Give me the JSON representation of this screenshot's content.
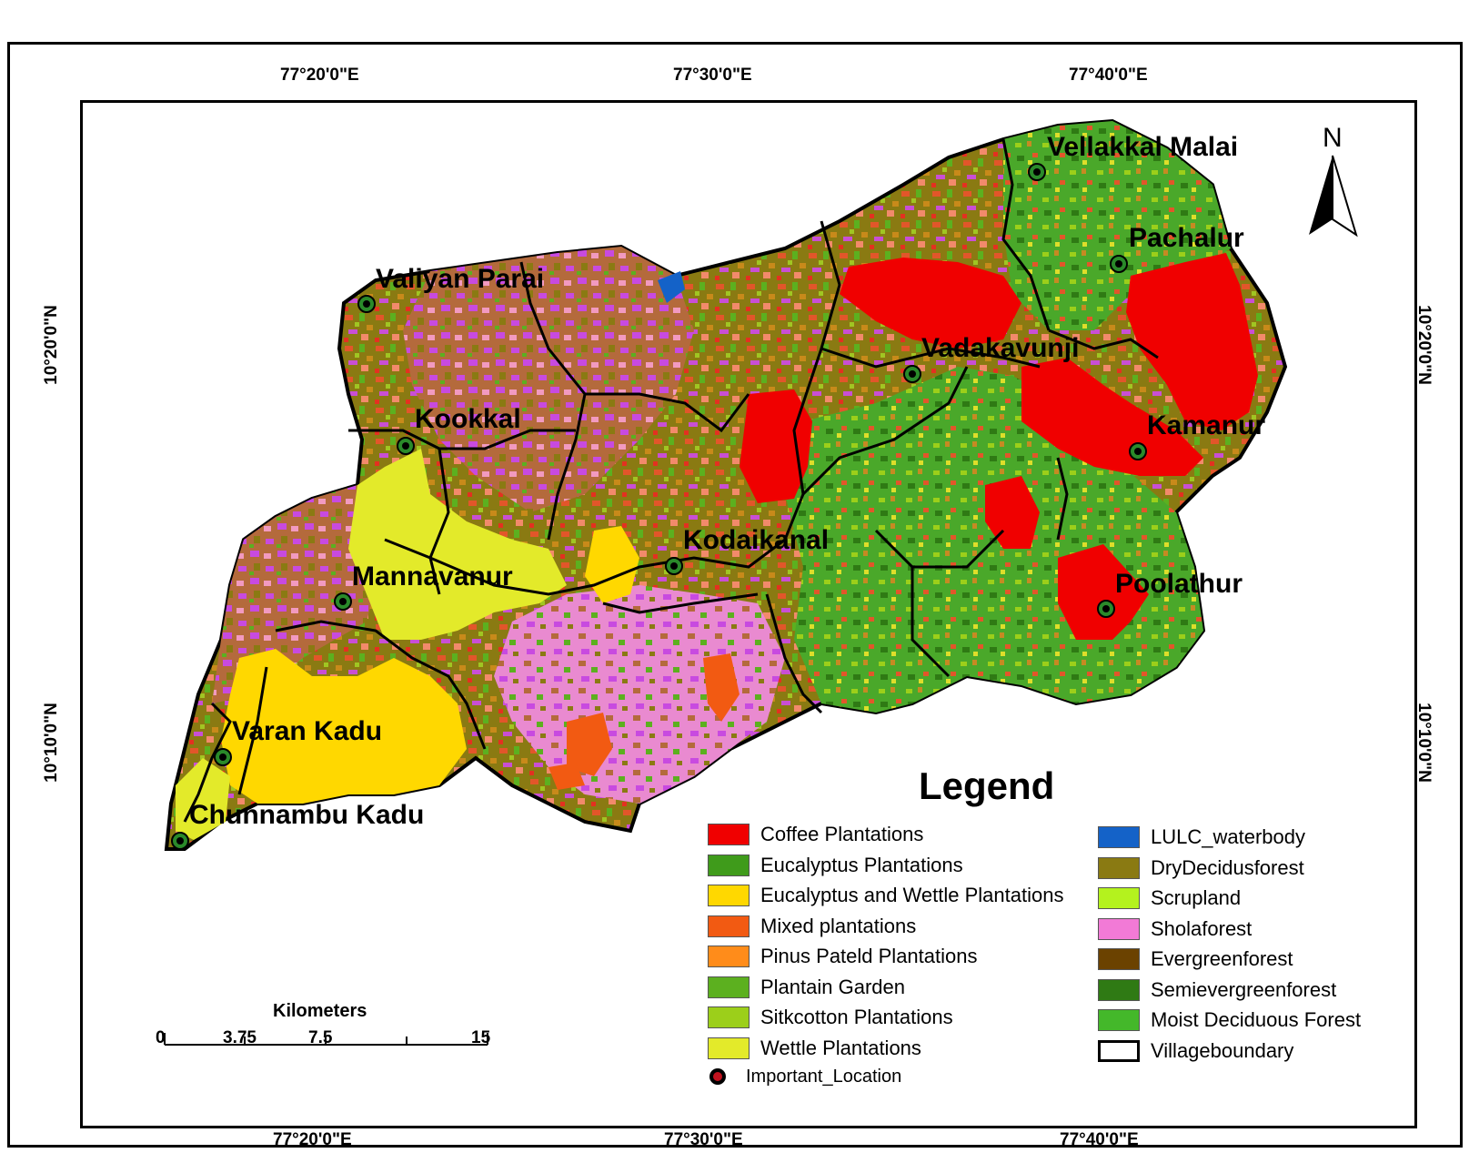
{
  "coordinates": {
    "top": [
      "77°20'0\"E",
      "77°30'0\"E",
      "77°40'0\"E"
    ],
    "bottom": [
      "77°20'0\"E",
      "77°30'0\"E",
      "77°40'0\"E"
    ],
    "left": [
      "10°20'0\"N",
      "10°10'0\"N"
    ],
    "right": [
      "10°20'0\"N",
      "10°10'0\"N"
    ]
  },
  "north_arrow": {
    "label": "N"
  },
  "locations": [
    "Vellakkal Malai",
    "Pachalur",
    "Valiyan Parai",
    "Vadakavunji",
    "Kookkal",
    "Kamanur",
    "Kodaikanal",
    "Mannavanur",
    "Poolathur",
    "Varan Kadu",
    "Chunnambu Kadu"
  ],
  "legend": {
    "title": "Legend",
    "left_items": [
      {
        "label": "Coffee Plantations",
        "color": "#f00000"
      },
      {
        "label": "Eucalyptus Plantations",
        "color": "#3f9b1b"
      },
      {
        "label": "Eucalyptus and Wettle Plantations",
        "color": "#ffd800"
      },
      {
        "label": "Mixed plantations",
        "color": "#f25a12"
      },
      {
        "label": "Pinus Pateld Plantations",
        "color": "#ff8c1a"
      },
      {
        "label": "Plantain Garden",
        "color": "#5cb01f"
      },
      {
        "label": "Sitkcotton Plantations",
        "color": "#9ccf1a"
      },
      {
        "label": "Wettle Plantations",
        "color": "#e3ea2a"
      }
    ],
    "important_location": "Important_Location",
    "right_items": [
      {
        "label": "LULC_waterbody",
        "color": "#1462c8"
      },
      {
        "label": "DryDecidusforest",
        "color": "#8a7a12"
      },
      {
        "label": "Scrupland",
        "color": "#b4f21e"
      },
      {
        "label": "Sholaforest",
        "color": "#f27ad6"
      },
      {
        "label": "Evergreenforest",
        "color": "#6b4200"
      },
      {
        "label": "Semievergreenforest",
        "color": "#2f7a14"
      },
      {
        "label": "Moist Deciduous Forest",
        "color": "#44b82a"
      },
      {
        "label": "Villageboundary",
        "color": "#ffffff"
      }
    ]
  },
  "scale_bar": {
    "title": "Kilometers",
    "ticks": [
      "0",
      "3.75",
      "7.5",
      "15"
    ]
  }
}
